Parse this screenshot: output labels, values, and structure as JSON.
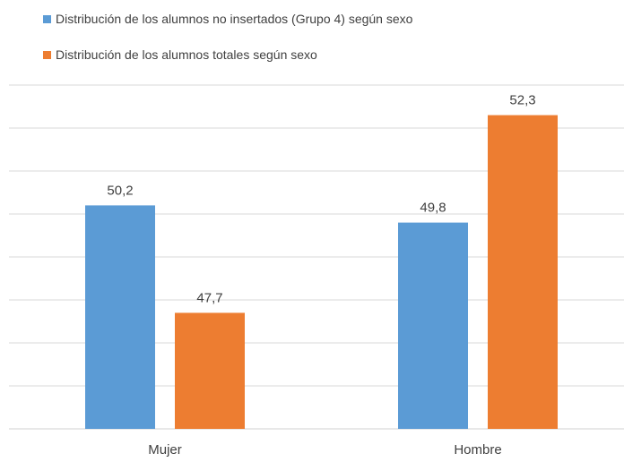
{
  "chart_data": {
    "type": "bar",
    "categories": [
      "Mujer",
      "Hombre"
    ],
    "series": [
      {
        "name": "Distribución de los alumnos no insertados (Grupo 4) según sexo",
        "values": [
          50.2,
          49.8
        ],
        "labels": [
          "50,2",
          "49,8"
        ],
        "color": "#5b9bd5"
      },
      {
        "name": "Distribución de los alumnos totales según sexo",
        "values": [
          47.7,
          52.3
        ],
        "labels": [
          "47,7",
          "52,3"
        ],
        "color": "#ed7d31"
      }
    ],
    "ylim": [
      45,
      53
    ],
    "grid": true,
    "legend": "top-left"
  }
}
